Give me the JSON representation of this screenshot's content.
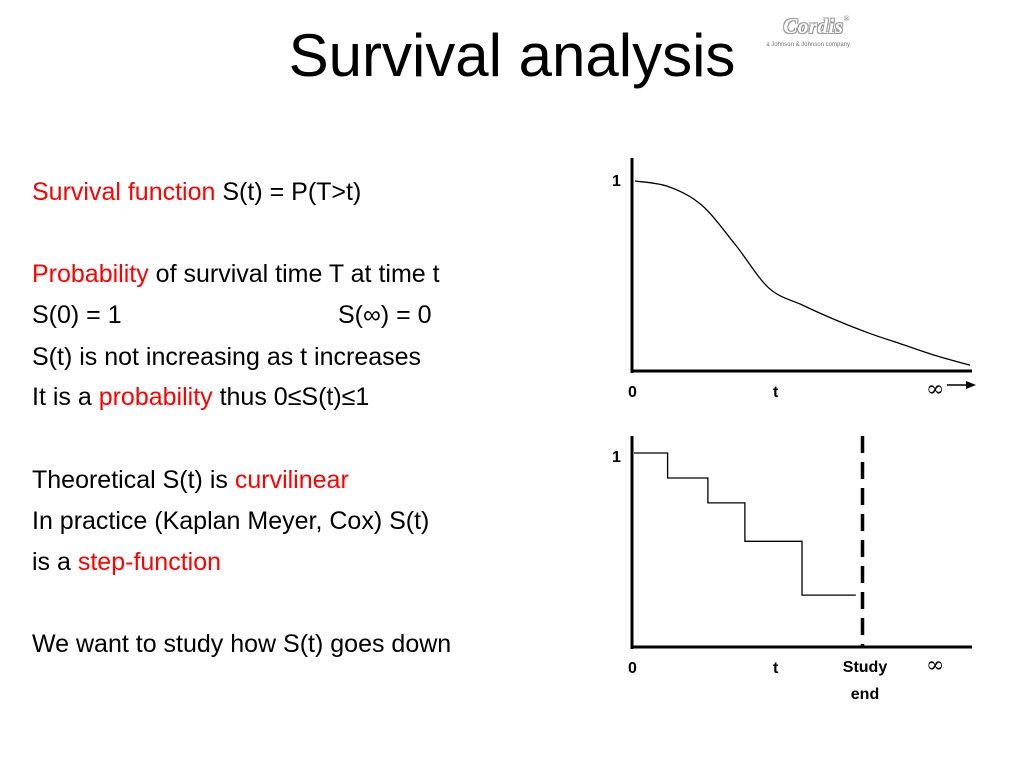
{
  "slide": {
    "title": "Survival analysis",
    "logo": {
      "brand": "Cordis",
      "tagline": "a Johnson & Johnson company"
    }
  },
  "text": {
    "line1": {
      "red": "Survival function",
      "black": " S(t) = P(T>t)"
    },
    "line2": {
      "red": "Probability",
      "black": " of survival time T at time t"
    },
    "line3": {
      "left": "S(0) = 1",
      "right": "S(∞) = 0"
    },
    "line4": "S(t) is not increasing as t increases",
    "line5": {
      "pre": "It is a ",
      "red": "probability",
      "post": " thus 0≤S(t)≤1"
    },
    "line6": {
      "pre": "Theoretical S(t) is ",
      "red": "curvilinear"
    },
    "line7": "In practice (Kaplan Meyer, Cox) S(t)",
    "line8": {
      "pre": "is a ",
      "red": "step-function"
    },
    "line9": "We want to study how S(t) goes down"
  },
  "chart_data": [
    {
      "type": "line",
      "curve": "smooth",
      "title": "",
      "y_tick": "1",
      "x_ticks": [
        "0",
        "t",
        "∞"
      ],
      "x": [
        0,
        0.1,
        0.2,
        0.3,
        0.4,
        0.5,
        0.6,
        0.7,
        0.8,
        0.9,
        1.0
      ],
      "y": [
        1.0,
        0.97,
        0.87,
        0.66,
        0.43,
        0.34,
        0.26,
        0.19,
        0.13,
        0.07,
        0.02
      ],
      "xlim": [
        0,
        1
      ],
      "ylim": [
        0,
        1
      ]
    },
    {
      "type": "line",
      "curve": "step",
      "title": "",
      "y_tick": "1",
      "x_ticks": [
        "0",
        "t",
        "∞"
      ],
      "study_end_label": [
        "Study",
        "end"
      ],
      "study_end_x": 0.68,
      "x": [
        0,
        0.1,
        0.22,
        0.33,
        0.5,
        0.66
      ],
      "y": [
        1.0,
        0.87,
        0.74,
        0.54,
        0.26,
        0.26
      ],
      "xlim": [
        0,
        1
      ],
      "ylim": [
        0,
        1
      ]
    }
  ]
}
